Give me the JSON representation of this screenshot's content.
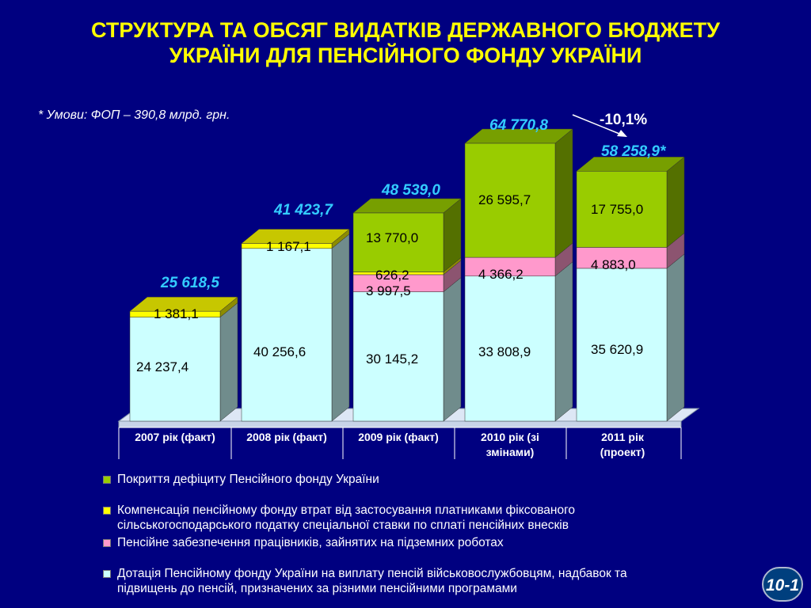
{
  "title_line1": "СТРУКТУРА ТА ОБСЯГ ВИДАТКІВ ДЕРЖАВНОГО БЮДЖЕТУ",
  "title_line2": "УКРАЇНИ ДЛЯ ПЕНСІЙНОГО ФОНДУ УКРАЇНИ",
  "note": "* Умови: ФОП – 390,8 млрд. грн.",
  "slide_number": "10-1",
  "colors": {
    "background": "#000080",
    "title": "#ffff00",
    "total_label": "#33ccff",
    "dotatsiia": "#ccffff",
    "pidzemni": "#ff99cc",
    "kompensatsiia": "#ffff00",
    "deficit": "#99cc00"
  },
  "chart_data": {
    "type": "bar",
    "stacked": true,
    "categories": [
      "2007 рік (факт)",
      "2008 рік (факт)",
      "2009 рік (факт)",
      "2010 рік (зі змінами)",
      "2011 рік (проект)"
    ],
    "category_lines": [
      [
        "2007 рік (факт)"
      ],
      [
        "2008 рік (факт)"
      ],
      [
        "2009 рік (факт)"
      ],
      [
        "2010 рік (зі",
        "змінами)"
      ],
      [
        "2011 рік",
        "(проект)"
      ]
    ],
    "series": [
      {
        "name": "Дотація Пенсійному фонду України на виплату пенсій військовослужбовцям, надбавок та підвищень до пенсій, призначених за різними пенсійними програмами",
        "key": "dotatsiia",
        "values": [
          24237.4,
          40256.6,
          30145.2,
          33808.9,
          35620.9
        ],
        "labels": [
          "24 237,4",
          "40 256,6",
          "30 145,2",
          "33 808,9",
          "35 620,9"
        ]
      },
      {
        "name": "Пенсійне забезпечення працівників, зайнятих на підземних роботах",
        "key": "pidzemni",
        "values": [
          0,
          0,
          3997.5,
          4366.2,
          4883.0
        ],
        "labels": [
          "",
          "",
          "3 997,5",
          "4 366,2",
          "4 883,0"
        ]
      },
      {
        "name": "Компенсація пенсійному фонду втрат від застосування платниками фіксованого сільськогосподарського податку спеціальної ставки по сплаті пенсійних внесків",
        "key": "kompensatsiia",
        "values": [
          1381.1,
          1167.1,
          626.2,
          0,
          0
        ],
        "labels": [
          "1 381,1",
          "1 167,1",
          "626,2",
          "",
          ""
        ]
      },
      {
        "name": "Покриття дефіциту Пенсійного фонду України",
        "key": "deficit",
        "values": [
          0,
          0,
          13770.0,
          26595.7,
          17755.0
        ],
        "labels": [
          "",
          "",
          "13 770,0",
          "26 595,7",
          "17 755,0"
        ]
      }
    ],
    "totals": [
      25618.5,
      41423.7,
      48539.0,
      64770.8,
      58258.9
    ],
    "total_labels": [
      "25 618,5",
      "41 423,7",
      "48 539,0",
      "64 770,8",
      "58 258,9*"
    ],
    "change_annotation": "-10,1%",
    "legend_order": [
      "deficit",
      "kompensatsiia",
      "pidzemni",
      "dotatsiia"
    ],
    "legend_lines": {
      "deficit": [
        "Покриття дефіциту Пенсійного фонду України"
      ],
      "kompensatsiia": [
        "Компенсація пенсійному фонду втрат від застосування платниками фіксованого",
        "сільськогосподарського податку спеціальної ставки по сплаті пенсійних внесків"
      ],
      "pidzemni": [
        "Пенсійне забезпечення працівників, зайнятих на підземних роботах"
      ],
      "dotatsiia": [
        "Дотація Пенсійному фонду України на виплату пенсій військовослужбовцям, надбавок та",
        "підвищень до пенсій, призначених за різними пенсійними програмами"
      ]
    },
    "legend_placement": "bottom",
    "grid": false
  }
}
